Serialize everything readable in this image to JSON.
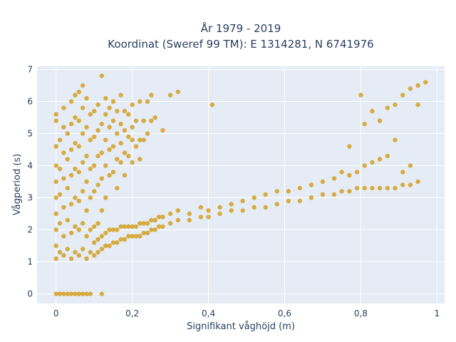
{
  "chart_data": {
    "type": "scatter",
    "title_lines": [
      "År 1979 - 2019",
      "Koordinat (Sweref 99 TM): E 1314281, N 6741976"
    ],
    "xlabel": "Signifikant våghöjd (m)",
    "ylabel": "Vågperiod (s)",
    "xlim": [
      -0.05,
      1.02
    ],
    "ylim": [
      -0.3,
      7.1
    ],
    "x_ticks": [
      0,
      0.2,
      0.4,
      0.6,
      0.8,
      1
    ],
    "x_tick_labels": [
      "0",
      "0,2",
      "0,4",
      "0,6",
      "0,8",
      "1"
    ],
    "y_ticks": [
      0,
      1,
      2,
      3,
      4,
      5,
      6,
      7
    ],
    "y_tick_labels": [
      "0",
      "1",
      "2",
      "3",
      "4",
      "5",
      "6",
      "7"
    ],
    "grid": true,
    "colors": {
      "marker": "#d4a020",
      "plot_bg": "#e5ecf6",
      "grid": "#ffffff"
    },
    "series": [
      {
        "values": [
          [
            0,
            0
          ],
          [
            0.01,
            0
          ],
          [
            0.02,
            0
          ],
          [
            0.03,
            0
          ],
          [
            0.04,
            0
          ],
          [
            0.05,
            0
          ],
          [
            0.06,
            0
          ],
          [
            0.07,
            0
          ],
          [
            0.08,
            0
          ],
          [
            0.09,
            0
          ],
          [
            0.12,
            0
          ],
          [
            0.0,
            1.1
          ],
          [
            0.0,
            1.5
          ],
          [
            0.0,
            2.0
          ],
          [
            0.0,
            2.5
          ],
          [
            0.0,
            3.0
          ],
          [
            0.0,
            3.5
          ],
          [
            0.0,
            4.0
          ],
          [
            0.0,
            4.6
          ],
          [
            0.0,
            5.4
          ],
          [
            0.0,
            5.6
          ],
          [
            0.01,
            1.3
          ],
          [
            0.01,
            2.2
          ],
          [
            0.01,
            3.1
          ],
          [
            0.01,
            3.9
          ],
          [
            0.01,
            4.8
          ],
          [
            0.02,
            1.2
          ],
          [
            0.02,
            1.8
          ],
          [
            0.02,
            2.7
          ],
          [
            0.02,
            3.6
          ],
          [
            0.02,
            4.4
          ],
          [
            0.02,
            5.2
          ],
          [
            0.02,
            5.8
          ],
          [
            0.03,
            1.4
          ],
          [
            0.03,
            2.3
          ],
          [
            0.03,
            3.3
          ],
          [
            0.03,
            4.2
          ],
          [
            0.03,
            5.0
          ],
          [
            0.04,
            1.1
          ],
          [
            0.04,
            1.9
          ],
          [
            0.04,
            2.8
          ],
          [
            0.04,
            3.7
          ],
          [
            0.04,
            4.5
          ],
          [
            0.04,
            5.3
          ],
          [
            0.04,
            6.0
          ],
          [
            0.05,
            1.3
          ],
          [
            0.05,
            2.1
          ],
          [
            0.05,
            3.0
          ],
          [
            0.05,
            3.9
          ],
          [
            0.05,
            4.7
          ],
          [
            0.05,
            5.5
          ],
          [
            0.05,
            6.2
          ],
          [
            0.06,
            1.2
          ],
          [
            0.06,
            2.0
          ],
          [
            0.06,
            2.9
          ],
          [
            0.06,
            3.8
          ],
          [
            0.06,
            4.6
          ],
          [
            0.06,
            5.4
          ],
          [
            0.06,
            6.3
          ],
          [
            0.07,
            1.4
          ],
          [
            0.07,
            2.2
          ],
          [
            0.07,
            3.2
          ],
          [
            0.07,
            4.1
          ],
          [
            0.07,
            5.0
          ],
          [
            0.07,
            5.8
          ],
          [
            0.07,
            6.5
          ],
          [
            0.08,
            1.1
          ],
          [
            0.08,
            1.8
          ],
          [
            0.08,
            2.6
          ],
          [
            0.08,
            3.5
          ],
          [
            0.08,
            4.3
          ],
          [
            0.08,
            5.2
          ],
          [
            0.08,
            6.1
          ],
          [
            0.09,
            1.3
          ],
          [
            0.09,
            2.0
          ],
          [
            0.09,
            3.0
          ],
          [
            0.09,
            3.9
          ],
          [
            0.09,
            4.8
          ],
          [
            0.09,
            5.6
          ],
          [
            0.1,
            1.2
          ],
          [
            0.1,
            1.6
          ],
          [
            0.1,
            2.1
          ],
          [
            0.1,
            3.2
          ],
          [
            0.1,
            4.0
          ],
          [
            0.1,
            4.9
          ],
          [
            0.1,
            5.7
          ],
          [
            0.11,
            1.3
          ],
          [
            0.11,
            1.7
          ],
          [
            0.11,
            2.2
          ],
          [
            0.11,
            3.4
          ],
          [
            0.11,
            4.3
          ],
          [
            0.11,
            5.1
          ],
          [
            0.11,
            5.9
          ],
          [
            0.12,
            1.4
          ],
          [
            0.12,
            1.8
          ],
          [
            0.12,
            2.6
          ],
          [
            0.12,
            3.6
          ],
          [
            0.12,
            4.4
          ],
          [
            0.12,
            5.3
          ],
          [
            0.12,
            6.8
          ],
          [
            0.13,
            1.5
          ],
          [
            0.13,
            1.9
          ],
          [
            0.13,
            3.0
          ],
          [
            0.13,
            4.0
          ],
          [
            0.13,
            4.8
          ],
          [
            0.13,
            5.6
          ],
          [
            0.13,
            6.1
          ],
          [
            0.14,
            1.5
          ],
          [
            0.14,
            2.0
          ],
          [
            0.14,
            3.7
          ],
          [
            0.14,
            4.5
          ],
          [
            0.14,
            5.2
          ],
          [
            0.14,
            5.8
          ],
          [
            0.15,
            1.6
          ],
          [
            0.15,
            2.0
          ],
          [
            0.15,
            3.8
          ],
          [
            0.15,
            4.6
          ],
          [
            0.15,
            5.4
          ],
          [
            0.15,
            6.0
          ],
          [
            0.16,
            1.6
          ],
          [
            0.16,
            2.0
          ],
          [
            0.16,
            3.3
          ],
          [
            0.16,
            4.2
          ],
          [
            0.16,
            5.0
          ],
          [
            0.16,
            5.7
          ],
          [
            0.17,
            1.7
          ],
          [
            0.17,
            2.1
          ],
          [
            0.17,
            4.1
          ],
          [
            0.17,
            4.7
          ],
          [
            0.17,
            5.3
          ],
          [
            0.17,
            6.2
          ],
          [
            0.18,
            1.7
          ],
          [
            0.18,
            2.1
          ],
          [
            0.18,
            3.7
          ],
          [
            0.18,
            4.4
          ],
          [
            0.18,
            5.1
          ],
          [
            0.18,
            5.7
          ],
          [
            0.19,
            1.8
          ],
          [
            0.19,
            2.1
          ],
          [
            0.19,
            4.3
          ],
          [
            0.19,
            4.9
          ],
          [
            0.19,
            5.6
          ],
          [
            0.2,
            1.8
          ],
          [
            0.2,
            2.1
          ],
          [
            0.2,
            4.1
          ],
          [
            0.2,
            4.8
          ],
          [
            0.2,
            5.2
          ],
          [
            0.2,
            5.9
          ],
          [
            0.21,
            1.8
          ],
          [
            0.21,
            2.1
          ],
          [
            0.21,
            4.6
          ],
          [
            0.21,
            5.4
          ],
          [
            0.22,
            1.8
          ],
          [
            0.22,
            2.2
          ],
          [
            0.22,
            4.2
          ],
          [
            0.22,
            4.8
          ],
          [
            0.22,
            6.0
          ],
          [
            0.23,
            1.9
          ],
          [
            0.23,
            2.2
          ],
          [
            0.23,
            4.8
          ],
          [
            0.23,
            5.4
          ],
          [
            0.24,
            1.9
          ],
          [
            0.24,
            2.2
          ],
          [
            0.24,
            5.0
          ],
          [
            0.24,
            6.0
          ],
          [
            0.25,
            2.0
          ],
          [
            0.25,
            2.3
          ],
          [
            0.25,
            5.4
          ],
          [
            0.25,
            6.2
          ],
          [
            0.26,
            2.0
          ],
          [
            0.26,
            2.3
          ],
          [
            0.26,
            5.5
          ],
          [
            0.27,
            2.1
          ],
          [
            0.27,
            2.4
          ],
          [
            0.28,
            2.1
          ],
          [
            0.28,
            2.4
          ],
          [
            0.28,
            5.1
          ],
          [
            0.3,
            2.2
          ],
          [
            0.3,
            2.5
          ],
          [
            0.3,
            6.2
          ],
          [
            0.32,
            2.3
          ],
          [
            0.32,
            2.6
          ],
          [
            0.32,
            6.3
          ],
          [
            0.35,
            2.3
          ],
          [
            0.35,
            2.5
          ],
          [
            0.38,
            2.4
          ],
          [
            0.38,
            2.7
          ],
          [
            0.4,
            2.4
          ],
          [
            0.4,
            2.6
          ],
          [
            0.41,
            5.9
          ],
          [
            0.43,
            2.5
          ],
          [
            0.43,
            2.7
          ],
          [
            0.46,
            2.6
          ],
          [
            0.46,
            2.8
          ],
          [
            0.49,
            2.6
          ],
          [
            0.49,
            2.9
          ],
          [
            0.52,
            2.7
          ],
          [
            0.52,
            3.0
          ],
          [
            0.55,
            2.7
          ],
          [
            0.55,
            3.1
          ],
          [
            0.58,
            2.8
          ],
          [
            0.58,
            3.2
          ],
          [
            0.61,
            2.9
          ],
          [
            0.61,
            3.2
          ],
          [
            0.64,
            2.9
          ],
          [
            0.64,
            3.3
          ],
          [
            0.67,
            3.0
          ],
          [
            0.67,
            3.4
          ],
          [
            0.7,
            3.1
          ],
          [
            0.7,
            3.5
          ],
          [
            0.73,
            3.1
          ],
          [
            0.73,
            3.6
          ],
          [
            0.75,
            3.2
          ],
          [
            0.75,
            3.8
          ],
          [
            0.77,
            3.2
          ],
          [
            0.77,
            3.7
          ],
          [
            0.77,
            4.6
          ],
          [
            0.79,
            3.3
          ],
          [
            0.79,
            3.8
          ],
          [
            0.8,
            6.2
          ],
          [
            0.81,
            3.3
          ],
          [
            0.81,
            4.0
          ],
          [
            0.81,
            5.3
          ],
          [
            0.83,
            3.3
          ],
          [
            0.83,
            4.1
          ],
          [
            0.83,
            5.7
          ],
          [
            0.85,
            3.3
          ],
          [
            0.85,
            4.2
          ],
          [
            0.85,
            5.4
          ],
          [
            0.87,
            3.3
          ],
          [
            0.87,
            4.3
          ],
          [
            0.87,
            5.8
          ],
          [
            0.89,
            3.3
          ],
          [
            0.89,
            5.9
          ],
          [
            0.89,
            4.8
          ],
          [
            0.91,
            3.4
          ],
          [
            0.91,
            6.2
          ],
          [
            0.91,
            3.8
          ],
          [
            0.93,
            3.4
          ],
          [
            0.93,
            6.4
          ],
          [
            0.93,
            4.0
          ],
          [
            0.95,
            3.5
          ],
          [
            0.95,
            6.5
          ],
          [
            0.95,
            5.9
          ],
          [
            0.97,
            6.6
          ]
        ]
      }
    ]
  }
}
